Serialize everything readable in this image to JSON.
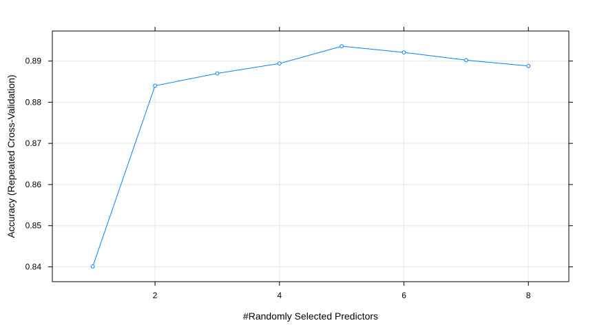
{
  "chart_data": {
    "type": "line",
    "xlabel": "#Randomly Selected Predictors",
    "ylabel": "Accuracy (Repeated Cross-Validation)",
    "x": [
      1,
      2,
      3,
      4,
      5,
      6,
      7,
      8
    ],
    "series": [
      {
        "values": [
          0.8401,
          0.884,
          0.887,
          0.8894,
          0.8936,
          0.8921,
          0.8902,
          0.8888
        ]
      }
    ],
    "xticks": [
      2,
      4,
      6,
      8
    ],
    "xtick_labels": [
      "2",
      "4",
      "6",
      "8"
    ],
    "yticks": [
      0.84,
      0.85,
      0.86,
      0.87,
      0.88,
      0.89
    ],
    "ytick_labels": [
      "0.84",
      "0.85",
      "0.86",
      "0.87",
      "0.88",
      "0.89"
    ],
    "xlim": [
      0.35,
      8.65
    ],
    "ylim": [
      0.8364,
      0.8973
    ],
    "grid": true,
    "colors": {
      "line": "#0080ff",
      "grid": "#e6e6e6",
      "axis": "#000000"
    }
  }
}
